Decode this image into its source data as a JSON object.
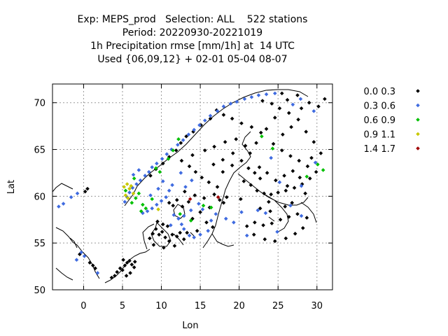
{
  "chart_data": {
    "type": "scatter",
    "title_lines": [
      "Exp: MEPS_prod   Selection: ALL    522 stations",
      "Period: 20220930-20221019",
      "1h Precipitation rmse [mm/1h] at  14 UTC",
      "Used {06,09,12} + 02-01 05-04 08-07"
    ],
    "xlabel": "Lon",
    "ylabel": "Lat",
    "xlim": [
      -4,
      32
    ],
    "ylim": [
      50,
      72
    ],
    "xticks": [
      0,
      5,
      10,
      15,
      20,
      25,
      30
    ],
    "yticks": [
      50,
      55,
      60,
      65,
      70
    ],
    "grid": true,
    "legend_position": "right",
    "series": [
      {
        "name": "0.0 0.3",
        "color": "#000000",
        "points": [
          [
            0.5,
            60.8
          ],
          [
            0.2,
            60.5
          ],
          [
            1.2,
            52.6
          ],
          [
            0.8,
            52.9
          ],
          [
            1.5,
            52.3
          ],
          [
            -0.5,
            53.8
          ],
          [
            4.3,
            51.9
          ],
          [
            4.7,
            52.3
          ],
          [
            5.0,
            52.1
          ],
          [
            5.3,
            52.6
          ],
          [
            5.6,
            52.9
          ],
          [
            5.9,
            53.1
          ],
          [
            6.2,
            52.7
          ],
          [
            6.5,
            52.4
          ],
          [
            5.5,
            51.5
          ],
          [
            6.0,
            51.8
          ],
          [
            4.0,
            51.5
          ],
          [
            3.6,
            51.3
          ],
          [
            5.1,
            53.2
          ],
          [
            6.6,
            53.0
          ],
          [
            8.5,
            55.5
          ],
          [
            8.9,
            56.0
          ],
          [
            9.3,
            56.5
          ],
          [
            9.7,
            55.9
          ],
          [
            10.1,
            56.2
          ],
          [
            10.5,
            55.6
          ],
          [
            10.2,
            57.0
          ],
          [
            9.5,
            57.3
          ],
          [
            10.8,
            56.8
          ],
          [
            11.4,
            55.9
          ],
          [
            12.0,
            55.7
          ],
          [
            12.4,
            56.1
          ],
          [
            11.0,
            55.2
          ],
          [
            9.0,
            54.8
          ],
          [
            10.3,
            54.5
          ],
          [
            11.7,
            54.7
          ],
          [
            12.9,
            55.4
          ],
          [
            11.0,
            59.3
          ],
          [
            11.5,
            59.0
          ],
          [
            12.0,
            59.6
          ],
          [
            13.5,
            59.4
          ],
          [
            14.3,
            60.1
          ],
          [
            13.0,
            60.5
          ],
          [
            15.5,
            59.8
          ],
          [
            16.8,
            60.2
          ],
          [
            17.5,
            59.6
          ],
          [
            18.0,
            59.3
          ],
          [
            16.2,
            58.8
          ],
          [
            15.0,
            58.3
          ],
          [
            14.0,
            57.6
          ],
          [
            15.8,
            57.2
          ],
          [
            16.6,
            56.7
          ],
          [
            13.3,
            56.1
          ],
          [
            14.6,
            56.3
          ],
          [
            12.7,
            58.9
          ],
          [
            18.4,
            59.9
          ],
          [
            17.2,
            61.0
          ],
          [
            16.1,
            61.5
          ],
          [
            15.2,
            62.0
          ],
          [
            14.4,
            62.6
          ],
          [
            13.6,
            63.2
          ],
          [
            12.6,
            63.8
          ],
          [
            14.0,
            64.4
          ],
          [
            15.6,
            64.9
          ],
          [
            16.8,
            65.3
          ],
          [
            18.2,
            65.8
          ],
          [
            19.6,
            66.1
          ],
          [
            20.8,
            65.4
          ],
          [
            19.2,
            64.6
          ],
          [
            17.9,
            63.9
          ],
          [
            16.7,
            63.4
          ],
          [
            17.9,
            62.6
          ],
          [
            19.1,
            63.3
          ],
          [
            20.3,
            63.8
          ],
          [
            21.4,
            64.6
          ],
          [
            22.2,
            65.7
          ],
          [
            22.8,
            66.8
          ],
          [
            21.6,
            67.4
          ],
          [
            20.3,
            67.8
          ],
          [
            19.1,
            68.3
          ],
          [
            18.0,
            68.7
          ],
          [
            17.1,
            69.2
          ],
          [
            16.3,
            68.3
          ],
          [
            15.1,
            67.6
          ],
          [
            14.1,
            66.9
          ],
          [
            13.2,
            66.4
          ],
          [
            12.5,
            65.7
          ],
          [
            11.9,
            64.9
          ],
          [
            11.0,
            64.2
          ],
          [
            10.2,
            63.5
          ],
          [
            9.3,
            62.9
          ],
          [
            8.6,
            62.2
          ],
          [
            21.5,
            61.2
          ],
          [
            22.3,
            60.6
          ],
          [
            23.2,
            60.3
          ],
          [
            24.1,
            60.2
          ],
          [
            25.0,
            60.4
          ],
          [
            26.0,
            60.6
          ],
          [
            27.1,
            60.9
          ],
          [
            28.1,
            61.3
          ],
          [
            29.1,
            61.9
          ],
          [
            29.9,
            62.6
          ],
          [
            28.8,
            63.2
          ],
          [
            27.7,
            63.8
          ],
          [
            26.6,
            64.3
          ],
          [
            25.5,
            64.9
          ],
          [
            24.4,
            65.6
          ],
          [
            25.6,
            66.6
          ],
          [
            26.7,
            67.4
          ],
          [
            27.6,
            68.2
          ],
          [
            26.4,
            68.9
          ],
          [
            25.2,
            69.4
          ],
          [
            24.2,
            69.9
          ],
          [
            23.0,
            70.2
          ],
          [
            24.6,
            68.4
          ],
          [
            23.5,
            67.2
          ],
          [
            22.6,
            63.1
          ],
          [
            23.6,
            62.5
          ],
          [
            24.7,
            61.7
          ],
          [
            25.8,
            62.2
          ],
          [
            26.9,
            62.7
          ],
          [
            27.8,
            62.0
          ],
          [
            22.0,
            62.5
          ],
          [
            21.2,
            63.0
          ],
          [
            21.0,
            56.8
          ],
          [
            22.0,
            57.2
          ],
          [
            23.1,
            56.9
          ],
          [
            24.2,
            57.1
          ],
          [
            25.3,
            57.5
          ],
          [
            26.4,
            57.8
          ],
          [
            27.5,
            58.1
          ],
          [
            24.0,
            58.4
          ],
          [
            22.7,
            58.7
          ],
          [
            25.9,
            58.9
          ],
          [
            26.8,
            59.3
          ],
          [
            23.8,
            59.4
          ],
          [
            21.9,
            55.9
          ],
          [
            23.3,
            55.4
          ],
          [
            24.6,
            55.2
          ],
          [
            26.0,
            55.5
          ],
          [
            27.2,
            56.0
          ],
          [
            28.2,
            56.6
          ],
          [
            28.7,
            57.7
          ],
          [
            20.2,
            59.7
          ],
          [
            20.6,
            61.6
          ],
          [
            22.7,
            61.9
          ],
          [
            26.2,
            61.1
          ],
          [
            28.5,
            60.3
          ],
          [
            29.3,
            64.1
          ],
          [
            30.5,
            64.6
          ],
          [
            29.6,
            65.8
          ],
          [
            28.6,
            66.9
          ],
          [
            28.0,
            69.4
          ],
          [
            29.0,
            70.0
          ],
          [
            30.2,
            69.6
          ],
          [
            31.0,
            70.4
          ],
          [
            27.5,
            70.8
          ],
          [
            26.2,
            70.3
          ],
          [
            25.5,
            71.0
          ]
        ]
      },
      {
        "name": "0.3 0.6",
        "color": "#3f6be0",
        "points": [
          [
            -3.2,
            58.9
          ],
          [
            -2.6,
            59.2
          ],
          [
            -1.6,
            59.9
          ],
          [
            -0.8,
            60.3
          ],
          [
            -0.3,
            54.0
          ],
          [
            0.1,
            53.6
          ],
          [
            -0.9,
            53.2
          ],
          [
            1.8,
            51.8
          ],
          [
            5.3,
            59.4
          ],
          [
            5.6,
            59.9
          ],
          [
            5.9,
            60.4
          ],
          [
            6.3,
            60.9
          ],
          [
            6.8,
            61.3
          ],
          [
            7.3,
            61.7
          ],
          [
            7.9,
            62.2
          ],
          [
            8.4,
            62.6
          ],
          [
            7.1,
            62.8
          ],
          [
            6.4,
            62.3
          ],
          [
            8.8,
            63.1
          ],
          [
            9.4,
            63.5
          ],
          [
            10.1,
            64.0
          ],
          [
            10.7,
            64.5
          ],
          [
            11.3,
            65.0
          ],
          [
            12.1,
            65.5
          ],
          [
            12.8,
            66.0
          ],
          [
            13.5,
            66.6
          ],
          [
            14.2,
            67.1
          ],
          [
            14.9,
            67.6
          ],
          [
            15.6,
            68.1
          ],
          [
            16.3,
            68.6
          ],
          [
            17.2,
            69.1
          ],
          [
            18.0,
            69.6
          ],
          [
            18.9,
            69.9
          ],
          [
            19.7,
            70.1
          ],
          [
            20.7,
            70.4
          ],
          [
            21.6,
            70.6
          ],
          [
            22.5,
            70.8
          ],
          [
            23.5,
            70.9
          ],
          [
            24.6,
            71.0
          ],
          [
            7.6,
            58.2
          ],
          [
            8.2,
            58.4
          ],
          [
            8.8,
            58.7
          ],
          [
            9.4,
            59.1
          ],
          [
            10.0,
            59.5
          ],
          [
            10.6,
            59.9
          ],
          [
            11.0,
            60.6
          ],
          [
            11.4,
            61.2
          ],
          [
            10.2,
            61.6
          ],
          [
            9.6,
            60.8
          ],
          [
            8.6,
            60.1
          ],
          [
            11.6,
            58.0
          ],
          [
            12.2,
            57.6
          ],
          [
            12.6,
            57.0
          ],
          [
            12.9,
            56.5
          ],
          [
            13.6,
            55.8
          ],
          [
            14.2,
            55.6
          ],
          [
            15.0,
            55.9
          ],
          [
            16.0,
            56.3
          ],
          [
            16.4,
            57.4
          ],
          [
            17.0,
            58.1
          ],
          [
            15.3,
            58.6
          ],
          [
            14.8,
            59.2
          ],
          [
            13.8,
            58.5
          ],
          [
            12.9,
            57.9
          ],
          [
            11.2,
            56.9
          ],
          [
            18.3,
            57.6
          ],
          [
            21.0,
            55.8
          ],
          [
            22.4,
            58.5
          ],
          [
            23.4,
            58.2
          ],
          [
            26.6,
            59.0
          ],
          [
            28.0,
            57.9
          ],
          [
            24.9,
            56.2
          ],
          [
            25.2,
            61.5
          ],
          [
            28.0,
            61.1
          ],
          [
            29.8,
            63.6
          ],
          [
            24.1,
            64.1
          ],
          [
            26.9,
            69.8
          ],
          [
            27.9,
            70.4
          ],
          [
            29.6,
            69.1
          ],
          [
            13.1,
            61.0
          ],
          [
            13.9,
            61.7
          ],
          [
            12.5,
            62.5
          ],
          [
            20.3,
            58.3
          ],
          [
            19.3,
            57.2
          ]
        ]
      },
      {
        "name": "0.6 0.9",
        "color": "#00c000",
        "points": [
          [
            6.2,
            59.3
          ],
          [
            6.7,
            59.8
          ],
          [
            7.1,
            60.3
          ],
          [
            5.4,
            60.6
          ],
          [
            6.5,
            61.9
          ],
          [
            7.6,
            59.1
          ],
          [
            8.0,
            58.7
          ],
          [
            8.8,
            59.7
          ],
          [
            9.3,
            63.0
          ],
          [
            10.9,
            64.0
          ],
          [
            11.5,
            64.9
          ],
          [
            12.2,
            66.1
          ],
          [
            15.4,
            59.0
          ],
          [
            16.4,
            58.8
          ],
          [
            12.4,
            58.1
          ],
          [
            13.8,
            57.4
          ],
          [
            22.9,
            66.4
          ],
          [
            24.3,
            65.1
          ],
          [
            30.1,
            63.4
          ],
          [
            30.8,
            62.8
          ],
          [
            28.7,
            62.1
          ],
          [
            9.8,
            62.6
          ],
          [
            7.4,
            58.4
          ]
        ]
      },
      {
        "name": "0.9 1.1",
        "color": "#c8c800",
        "points": [
          [
            5.2,
            61.0
          ],
          [
            5.6,
            61.3
          ],
          [
            5.9,
            60.8
          ],
          [
            6.1,
            61.1
          ],
          [
            5.4,
            60.1
          ],
          [
            6.4,
            60.3
          ],
          [
            9.6,
            58.6
          ],
          [
            5.7,
            59.8
          ]
        ]
      },
      {
        "name": "1.4 1.7",
        "color": "#a00000",
        "points": [
          [
            13.7,
            59.7
          ],
          [
            17.3,
            59.9
          ]
        ]
      }
    ]
  }
}
